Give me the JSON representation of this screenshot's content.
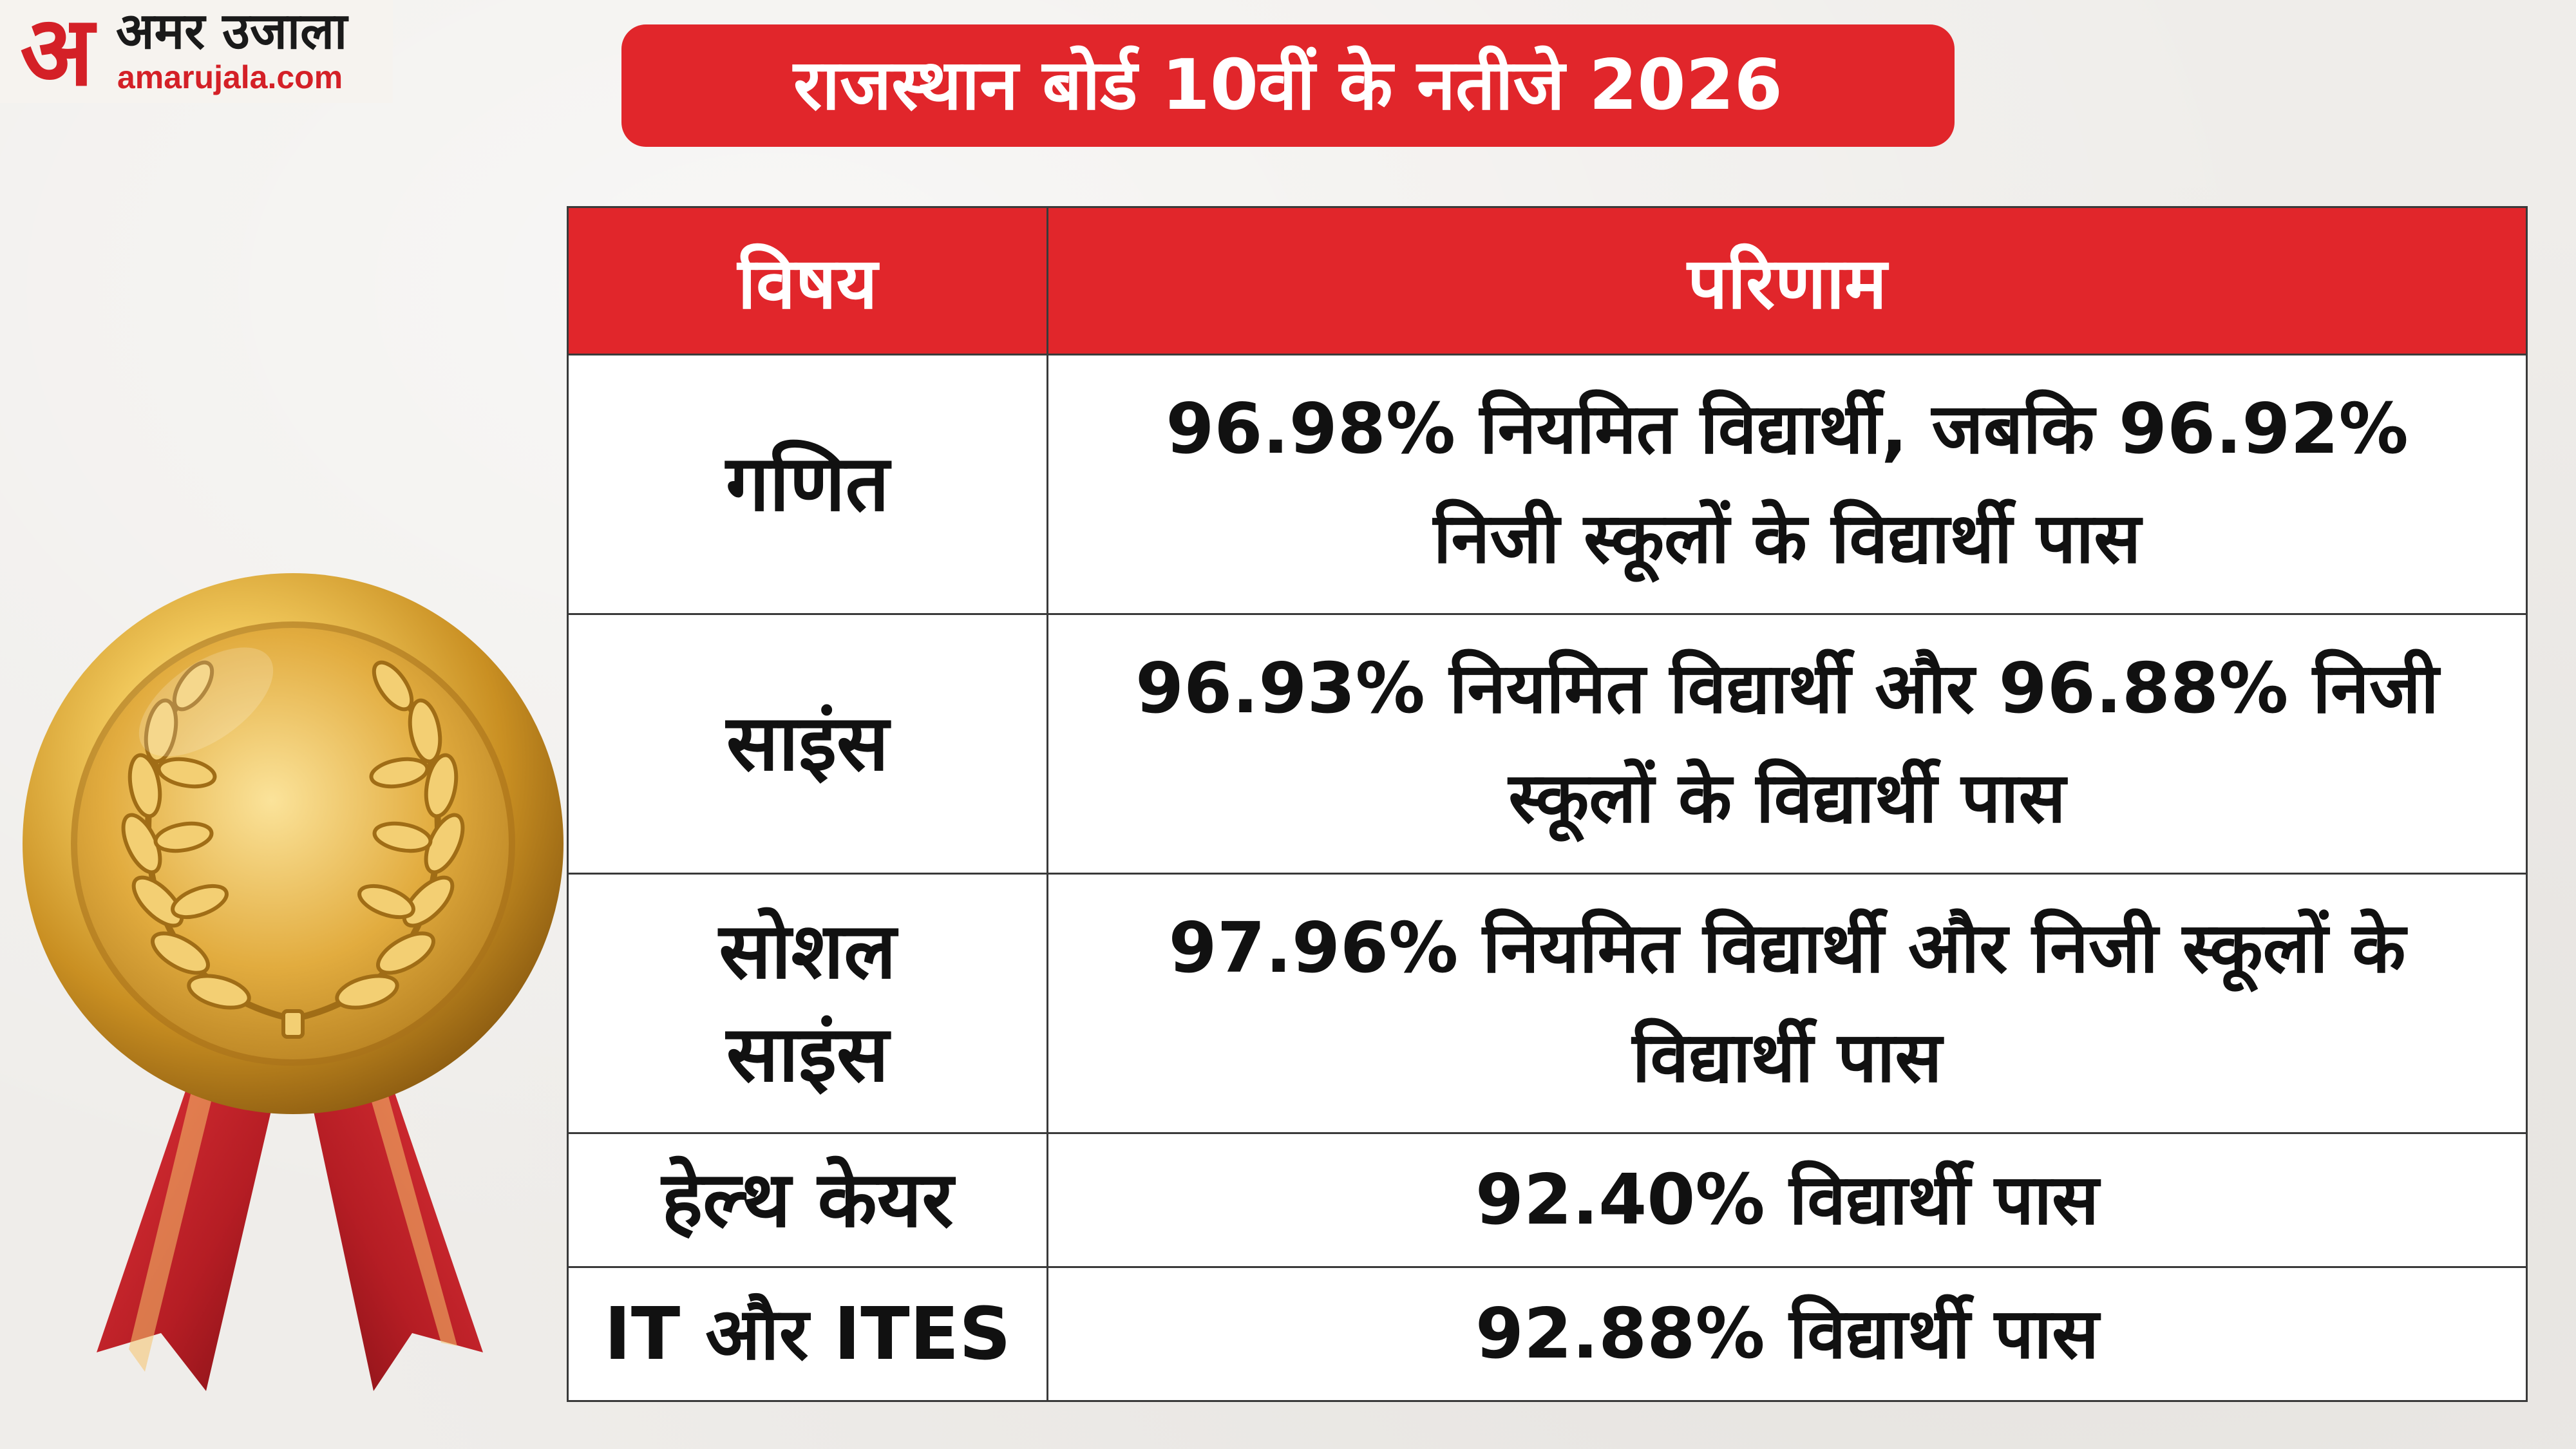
{
  "brand": {
    "mark": "अ",
    "name_hindi": "अमर उजाला",
    "url": "amarujala.com",
    "red": "#d42027"
  },
  "title": "राजस्थान बोर्ड 10वीं के नतीजे 2026",
  "colors": {
    "accent": "#e1262b",
    "background": "#efedea",
    "gold": "#d9a93a"
  },
  "table": {
    "headers": [
      "विषय",
      "परिणाम"
    ],
    "rows": [
      {
        "subject": "गणित",
        "result": "96.98% नियमित विद्यार्थी, जबकि 96.92% निजी स्कूलों के विद्यार्थी पास"
      },
      {
        "subject": "साइंस",
        "result": "96.93% नियमित विद्यार्थी और 96.88% निजी स्कूलों के विद्यार्थी पास"
      },
      {
        "subject": "सोशल साइंस",
        "result": "97.96% नियमित विद्यार्थी और निजी स्कूलों के विद्यार्थी पास"
      },
      {
        "subject": "हेल्थ केयर",
        "result": "92.40% विद्यार्थी पास"
      },
      {
        "subject": "IT और ITES",
        "result": "92.88% विद्यार्थी पास"
      }
    ]
  },
  "illustration": {
    "icon": "gold-medal-icon"
  }
}
